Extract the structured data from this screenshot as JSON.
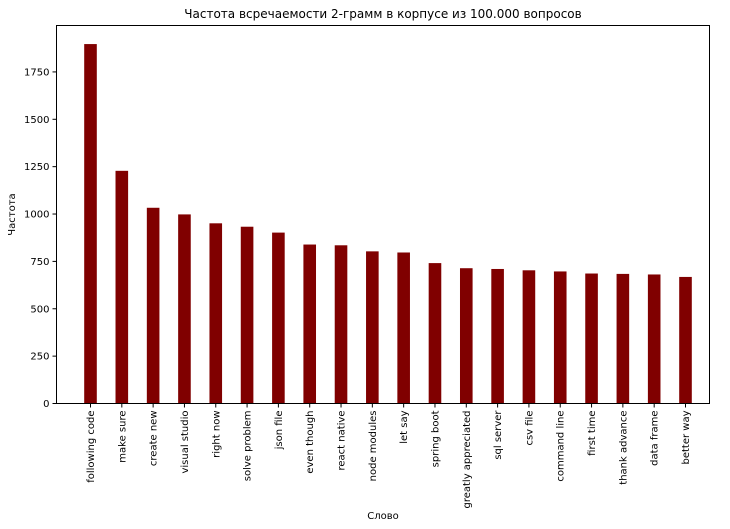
{
  "chart_data": {
    "type": "bar",
    "title": "Частота всречаемости 2-грамм в корпусе из 100.000 вопросов",
    "xlabel": "Слово",
    "ylabel": "Частота",
    "categories": [
      "following code",
      "make sure",
      "create new",
      "visual studio",
      "right now",
      "solve problem",
      "json file",
      "even though",
      "react native",
      "node modules",
      "let say",
      "spring boot",
      "greatly appreciated",
      "sql server",
      "csv file",
      "command line",
      "first time",
      "thank advance",
      "data frame",
      "better way"
    ],
    "values": [
      1897,
      1228,
      1033,
      998,
      951,
      933,
      902,
      839,
      835,
      803,
      797,
      741,
      714,
      710,
      703,
      697,
      686,
      684,
      681,
      668
    ],
    "ylim": [
      0,
      1995
    ],
    "yticks": [
      "0",
      "250",
      "500",
      "750",
      "1000",
      "1250",
      "1500",
      "1750"
    ],
    "bar_color": "#800000",
    "grid": false,
    "legend": "none"
  }
}
